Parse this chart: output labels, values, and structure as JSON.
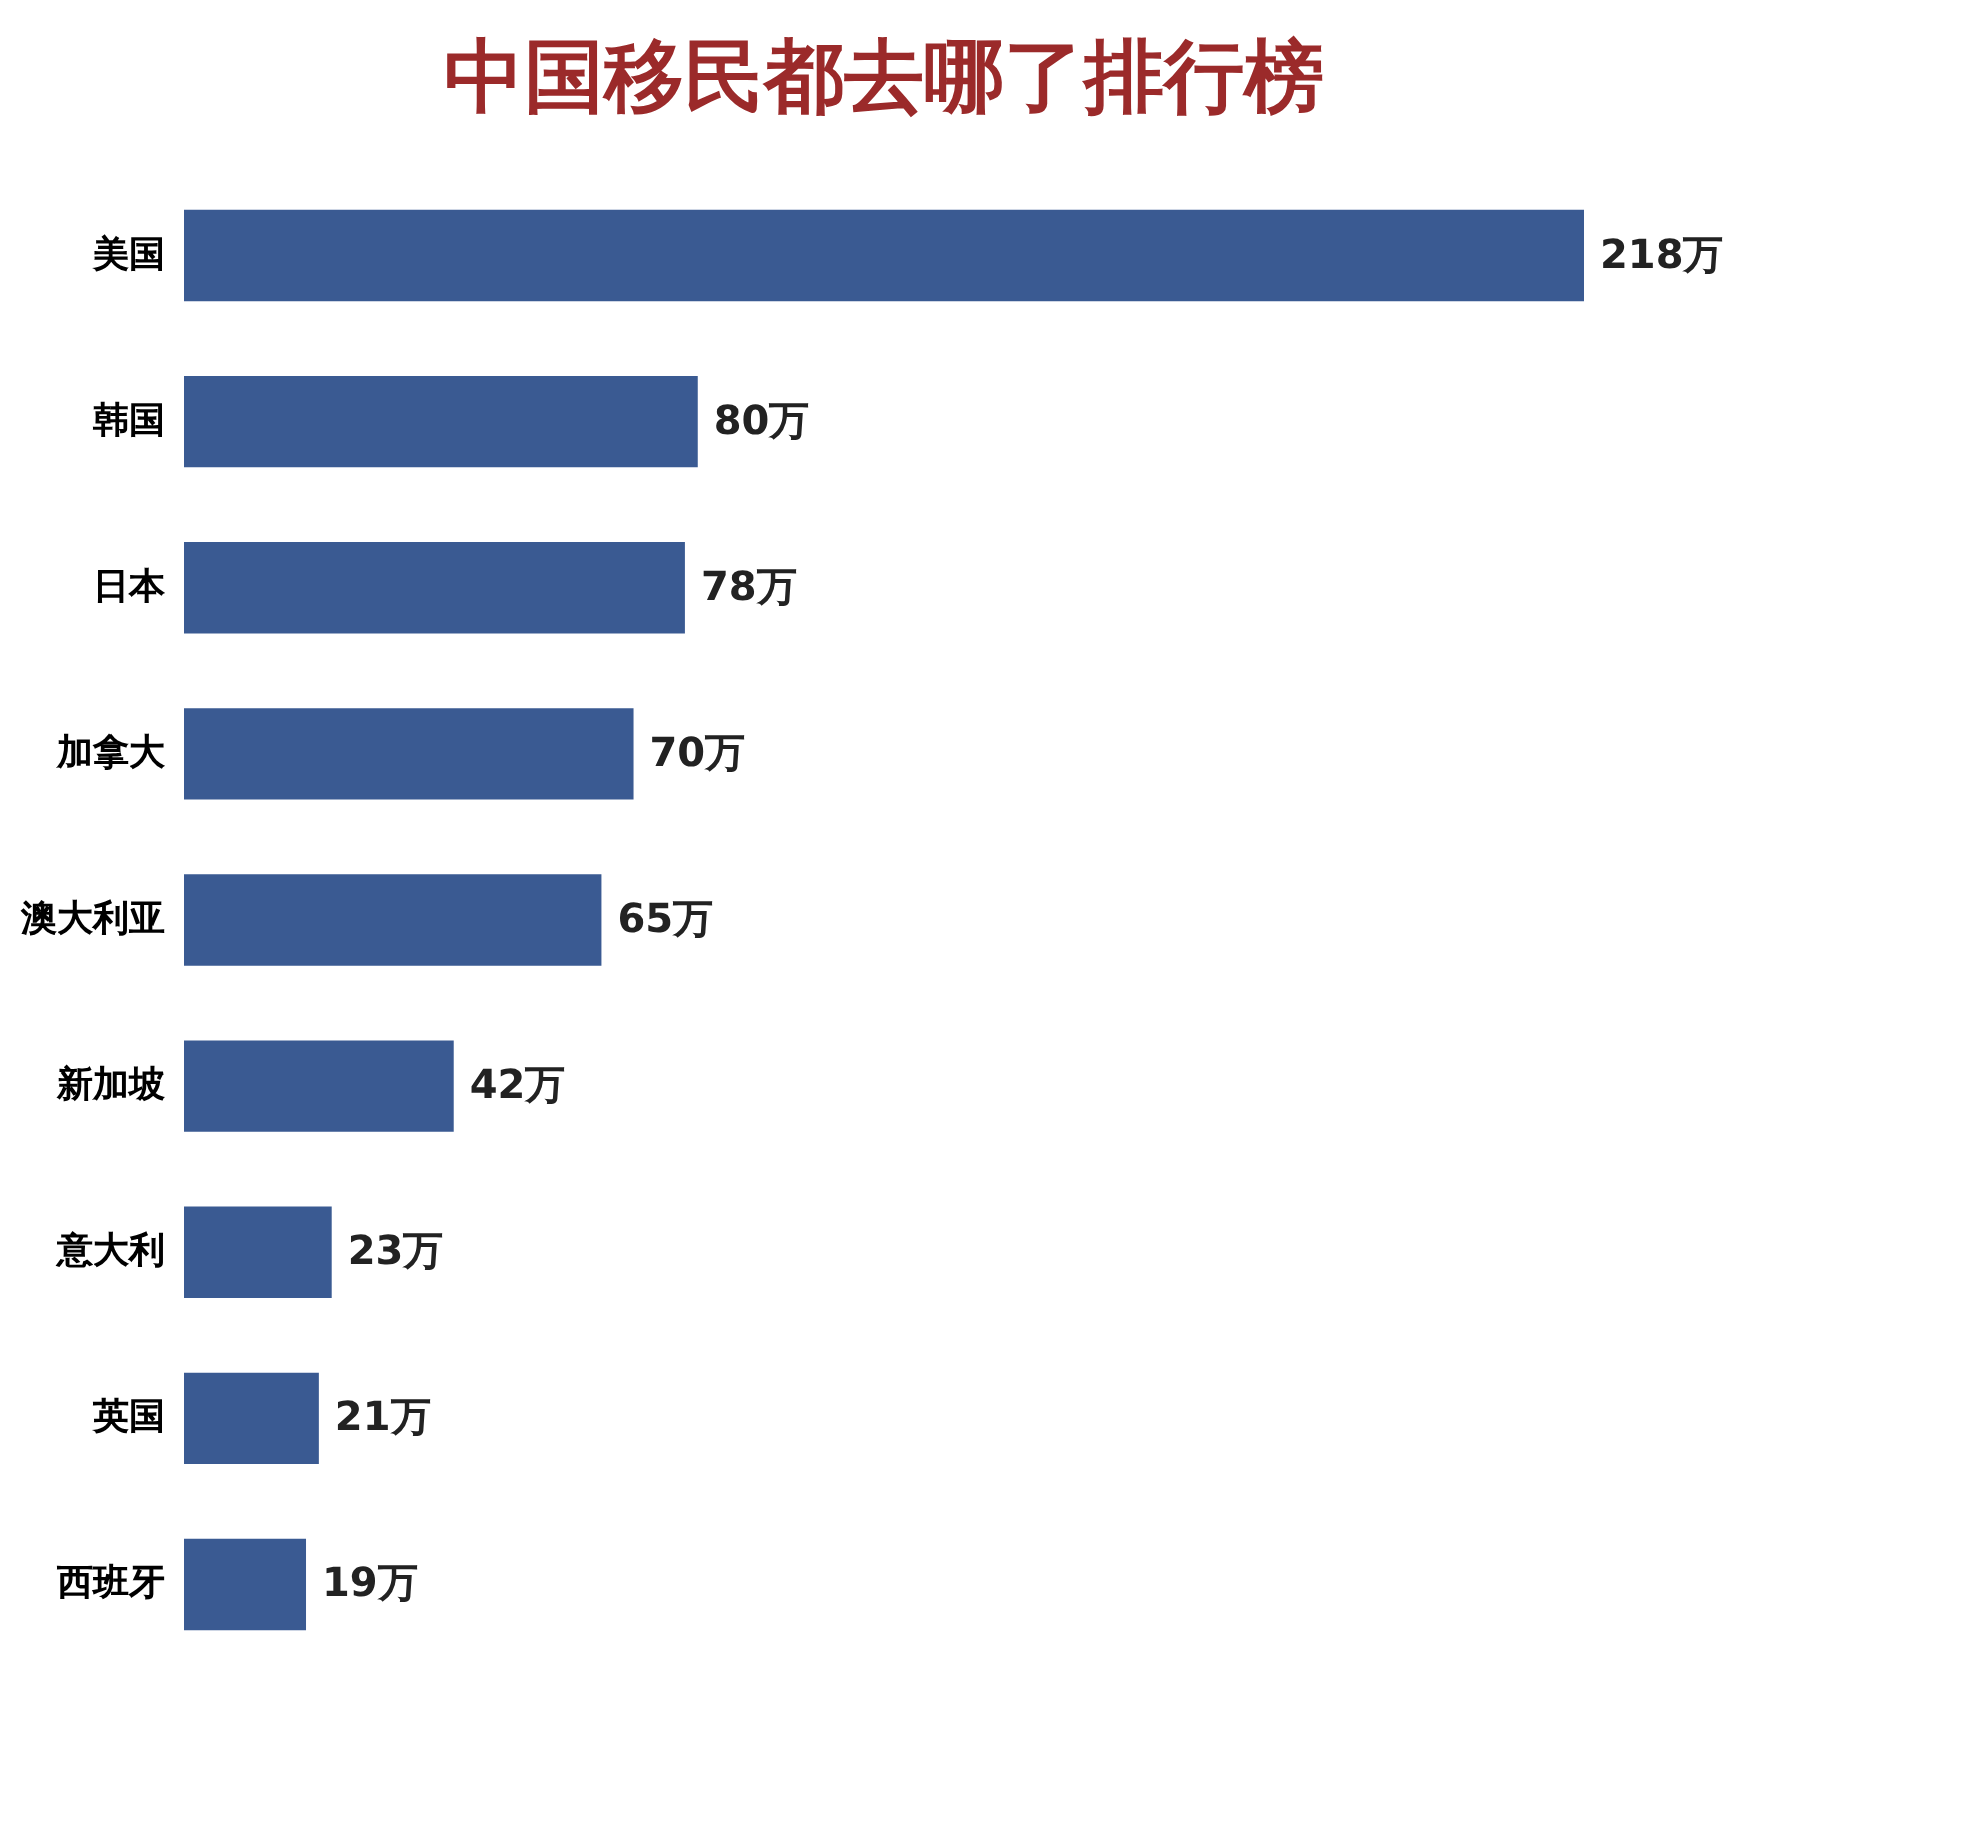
{
  "chart_data": {
    "type": "bar",
    "orientation": "horizontal",
    "title": "中国移民都去哪了排行榜",
    "categories": [
      "美国",
      "韩国",
      "日本",
      "加拿大",
      "澳大利亚",
      "新加坡",
      "意大利",
      "英国",
      "西班牙"
    ],
    "values": [
      218,
      80,
      78,
      70,
      65,
      42,
      23,
      21,
      19
    ],
    "value_labels": [
      "218万",
      "80万",
      "78万",
      "70万",
      "65万",
      "42万",
      "23万",
      "21万",
      "19万"
    ],
    "color": "#3a5a92",
    "grid": false
  }
}
